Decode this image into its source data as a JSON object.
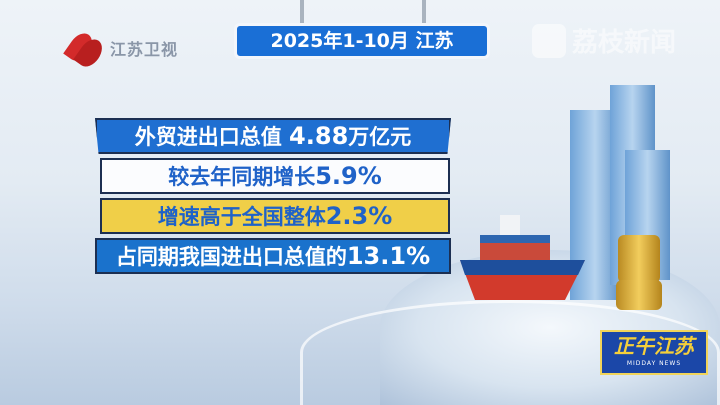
{
  "channel_logo": {
    "text": "江苏卫视",
    "color": "#d32a2a"
  },
  "title": "2025年1-10月 江苏",
  "watermark": {
    "text": "荔枝新闻"
  },
  "facts": [
    {
      "label": "外贸进出口总值",
      "value": "4.88",
      "unit": "万亿元"
    },
    {
      "label": "较去年同期增长",
      "value": "5.9%",
      "unit": ""
    },
    {
      "label": "增速高于全国整体",
      "value": "2.3%",
      "unit": ""
    },
    {
      "label": "占同期我国进出口总值的",
      "value": "13.1%",
      "unit": ""
    }
  ],
  "program_logo": {
    "text": "正午江苏",
    "subtitle": "MIDDAY NEWS"
  },
  "colors": {
    "blue": "#1f6fd1",
    "yellow": "#f0cf48",
    "white": "#fbfcfe",
    "text_blue": "#1f62c8"
  }
}
